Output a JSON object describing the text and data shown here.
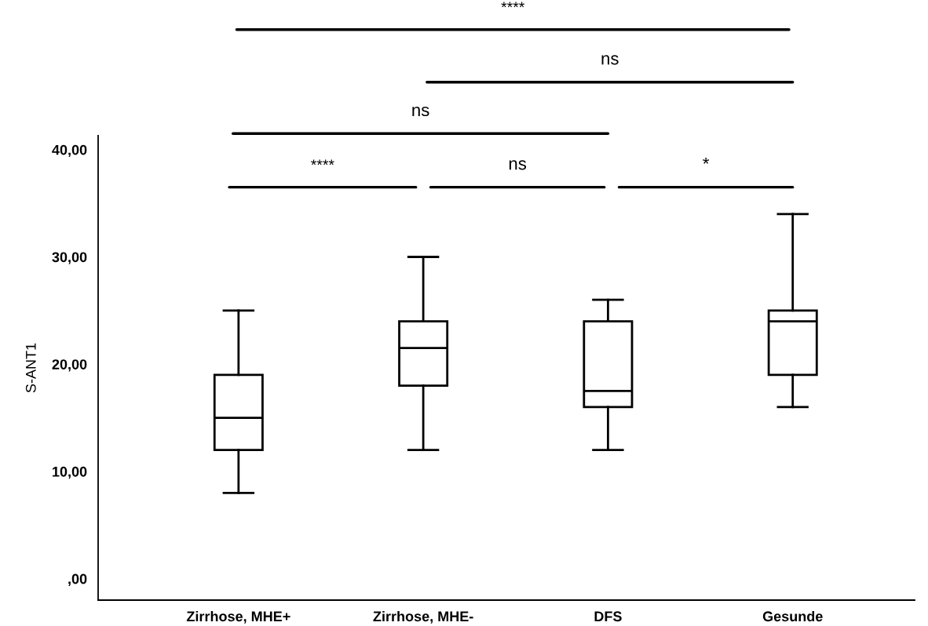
{
  "chart_data": {
    "type": "box",
    "ylabel": "S-ANT1",
    "categories": [
      "Zirrhose, MHE+",
      "Zirrhose, MHE-",
      "DFS",
      "Gesunde"
    ],
    "boxes": [
      {
        "low": 8,
        "q1": 12,
        "median": 15,
        "q3": 19,
        "high": 25
      },
      {
        "low": 12,
        "q1": 18,
        "median": 21.5,
        "q3": 24,
        "high": 30
      },
      {
        "low": 12,
        "q1": 16,
        "median": 17.5,
        "q3": 24,
        "high": 26
      },
      {
        "low": 16,
        "q1": 19,
        "median": 24,
        "q3": 25,
        "high": 34
      }
    ],
    "ylim": [
      -2,
      41.3
    ],
    "yticks": [
      {
        "value": 0,
        "label": ",00"
      },
      {
        "value": 10,
        "label": "10,00"
      },
      {
        "value": 20,
        "label": "20,00"
      },
      {
        "value": 30,
        "label": "30,00"
      },
      {
        "value": 40,
        "label": "40,00"
      }
    ],
    "grid": false,
    "annotations": [
      "****",
      "ns",
      "*",
      "ns",
      "ns",
      "****"
    ]
  }
}
